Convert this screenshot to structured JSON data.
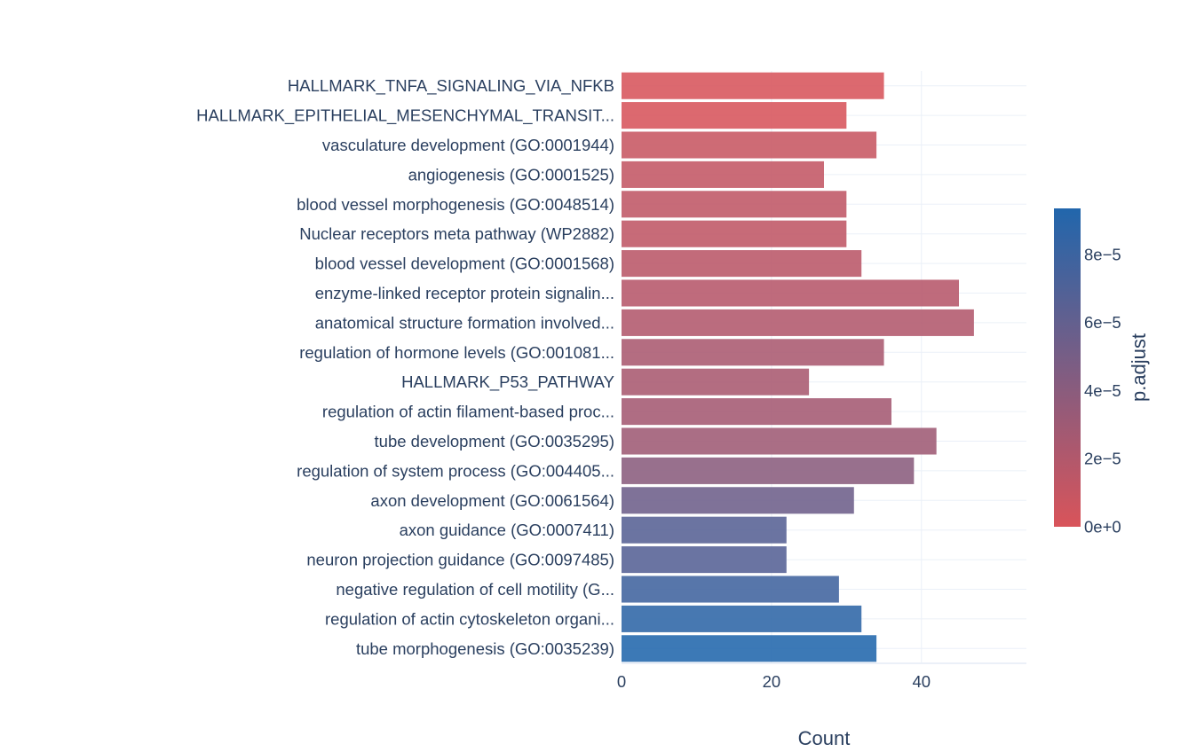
{
  "chart_data": {
    "type": "bar",
    "orientation": "horizontal",
    "title": "",
    "xlabel": "Count",
    "ylabel": "",
    "xlim": [
      0,
      54
    ],
    "x_ticks": [
      0,
      20,
      40
    ],
    "x_tick_labels": [
      "0",
      "20",
      "40"
    ],
    "grid": true,
    "categories": [
      "HALLMARK_TNFA_SIGNALING_VIA_NFKB",
      "HALLMARK_EPITHELIAL_MESENCHYMAL_TRANSIT...",
      "vasculature development (GO:0001944)",
      "angiogenesis (GO:0001525)",
      "blood vessel morphogenesis (GO:0048514)",
      "Nuclear receptors meta pathway (WP2882)",
      "blood vessel development (GO:0001568)",
      "enzyme-linked receptor protein signalin...",
      "anatomical structure formation involved...",
      "regulation of hormone levels (GO:001081...",
      "HALLMARK_P53_PATHWAY",
      "regulation of actin filament-based proc...",
      "tube development (GO:0035295)",
      "regulation of system process (GO:004405...",
      "axon development (GO:0061564)",
      "axon guidance (GO:0007411)",
      "neuron projection guidance (GO:0097485)",
      "negative regulation of cell motility (G...",
      "regulation of actin cytoskeleton organi...",
      "tube morphogenesis (GO:0035239)"
    ],
    "values": [
      35,
      30,
      34,
      27,
      30,
      30,
      32,
      45,
      47,
      35,
      25,
      36,
      42,
      39,
      31,
      22,
      22,
      29,
      32,
      34
    ],
    "color_values": [
      8e-07,
      8e-07,
      9e-06,
      1.1e-05,
      1.3e-05,
      1.3e-05,
      1.6e-05,
      1.8e-05,
      2e-05,
      2.4e-05,
      2.5e-05,
      2.7e-05,
      3e-05,
      4e-05,
      5.5e-05,
      6.6e-05,
      6.7e-05,
      7.8e-05,
      8.7e-05,
      9.4e-05
    ],
    "colorbar": {
      "title": "p.adjust",
      "range": [
        0,
        9.35e-05
      ],
      "ticks": [
        0,
        2e-05,
        4e-05,
        6e-05,
        8e-05
      ],
      "tick_labels": [
        "0e+0",
        "2e−5",
        "4e−5",
        "6e−5",
        "8e−5"
      ],
      "color_low": "#d9545a",
      "color_high": "#2166ac",
      "placement": "right"
    }
  }
}
